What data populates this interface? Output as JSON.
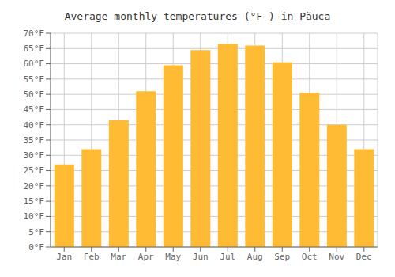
{
  "chart_data": {
    "type": "bar",
    "title": "Average monthly temperatures (°F ) in Păuca",
    "categories": [
      "Jan",
      "Feb",
      "Mar",
      "Apr",
      "May",
      "Jun",
      "Jul",
      "Aug",
      "Sep",
      "Oct",
      "Nov",
      "Dec"
    ],
    "values": [
      27,
      32,
      41.5,
      51,
      59.5,
      64.5,
      66.5,
      66,
      60.5,
      50.5,
      40,
      32
    ],
    "color": "#FFBB33",
    "ylim": [
      0,
      70
    ],
    "yticks": [
      {
        "value": 0,
        "label": "0°F"
      },
      {
        "value": 5,
        "label": "5°F"
      },
      {
        "value": 10,
        "label": "10°F"
      },
      {
        "value": 15,
        "label": "15°F"
      },
      {
        "value": 20,
        "label": "20°F"
      },
      {
        "value": 25,
        "label": "25°F"
      },
      {
        "value": 30,
        "label": "30°F"
      },
      {
        "value": 35,
        "label": "35°F"
      },
      {
        "value": 40,
        "label": "40°F"
      },
      {
        "value": 45,
        "label": "45°F"
      },
      {
        "value": 50,
        "label": "50°F"
      },
      {
        "value": 55,
        "label": "55°F"
      },
      {
        "value": 60,
        "label": "60°F"
      },
      {
        "value": 65,
        "label": "65°F"
      },
      {
        "value": 70,
        "label": "70°F"
      }
    ],
    "grid": true
  }
}
